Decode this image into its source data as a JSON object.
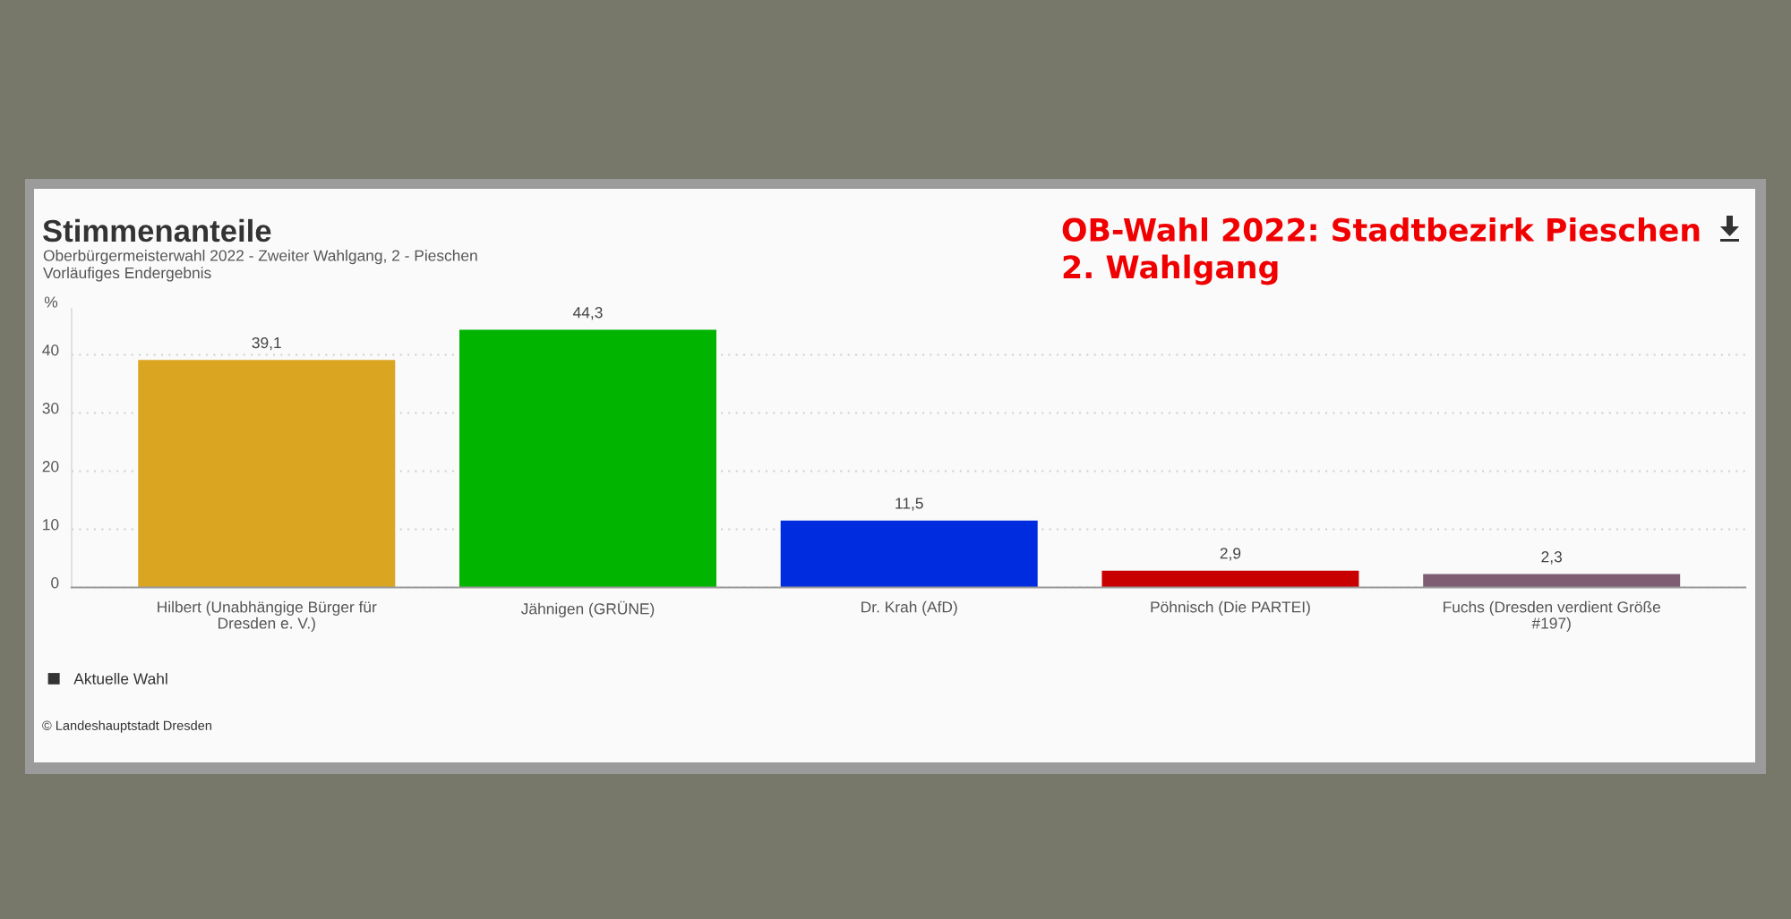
{
  "chart_data": {
    "type": "bar",
    "title": "Stimmenanteile",
    "subtitle": "Oberbürgermeisterwahl 2022 - Zweiter Wahlgang, 2 - Pieschen\nVorläufiges Endergebnis",
    "ylabel": "%",
    "annotations": [
      "OB-Wahl 2022: Stadtbezirk Pieschen\n2. Wahlgang",
      "© Landeshauptstadt Dresden"
    ],
    "categories": [
      "Hilbert (Unabhängige Bürger für Dresden e. V.)",
      "Jähnigen (GRÜNE)",
      "Dr. Krah (AfD)",
      "Pöhnisch (Die PARTEI)",
      "Fuchs (Dresden verdient Größe #197)"
    ],
    "series": [
      {
        "name": "Aktuelle Wahl",
        "color": "#333333",
        "colors": [
          "#daa520",
          "#00b400",
          "#002ce0",
          "#c80000",
          "#7f5e74"
        ],
        "values": [
          39.1,
          44.3,
          11.5,
          2.9,
          2.3
        ],
        "value_labels": [
          "39,1",
          "44,3",
          "11,5",
          "2,9",
          "2,3"
        ]
      }
    ],
    "ylim": [
      0,
      48
    ],
    "yticks": [
      0,
      10,
      20,
      30,
      40
    ],
    "grid": "y",
    "legend": "bottom left"
  }
}
